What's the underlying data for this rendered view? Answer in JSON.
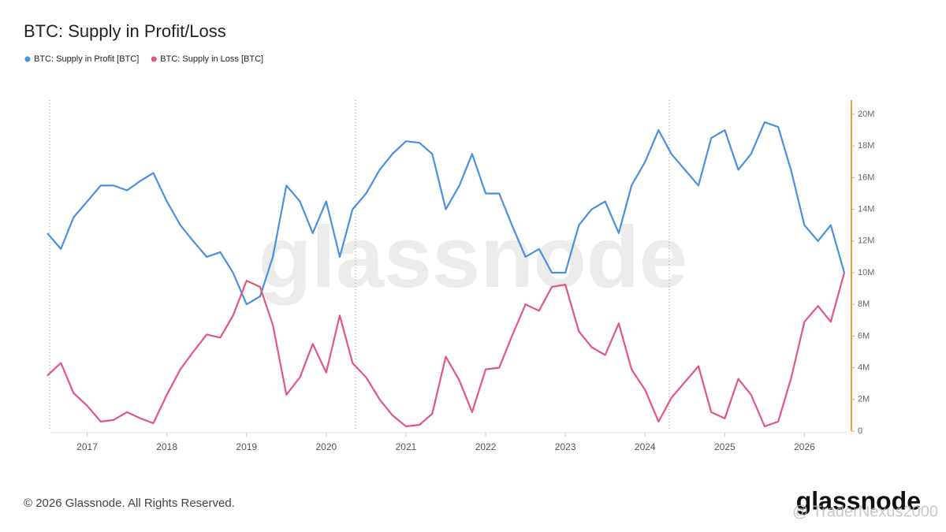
{
  "chart_data": {
    "type": "line",
    "title": "BTC: Supply in Profit/Loss",
    "watermark": "glassnode",
    "footer": "© 2026 Glassnode. All Rights Reserved.",
    "logo": "glassnode",
    "overlay": "@ TraderNexus2000",
    "x": [
      2016.5,
      2016.67,
      2016.83,
      2017.0,
      2017.17,
      2017.33,
      2017.5,
      2017.67,
      2017.83,
      2018.0,
      2018.17,
      2018.33,
      2018.5,
      2018.67,
      2018.83,
      2019.0,
      2019.17,
      2019.33,
      2019.5,
      2019.67,
      2019.83,
      2020.0,
      2020.17,
      2020.33,
      2020.5,
      2020.67,
      2020.83,
      2021.0,
      2021.17,
      2021.33,
      2021.5,
      2021.67,
      2021.83,
      2022.0,
      2022.17,
      2022.33,
      2022.5,
      2022.67,
      2022.83,
      2023.0,
      2023.17,
      2023.33,
      2023.5,
      2023.67,
      2023.83,
      2024.0,
      2024.17,
      2024.33,
      2024.5,
      2024.67,
      2024.83,
      2025.0,
      2025.17,
      2025.33,
      2025.5,
      2025.67,
      2025.83,
      2026.0,
      2026.17,
      2026.33,
      2026.5
    ],
    "series": [
      {
        "name": "BTC: Supply in Profit [BTC]",
        "color": "#4a8fe0",
        "values": [
          12500000,
          11500000,
          13500000,
          14500000,
          15500000,
          15500000,
          15200000,
          15800000,
          16300000,
          14500000,
          13000000,
          12000000,
          11000000,
          11300000,
          10000000,
          8000000,
          8500000,
          11000000,
          15500000,
          14500000,
          12500000,
          14500000,
          11000000,
          14000000,
          15000000,
          16500000,
          17500000,
          18300000,
          18200000,
          17500000,
          14000000,
          15500000,
          17500000,
          15000000,
          15000000,
          13000000,
          11000000,
          11500000,
          10000000,
          10000000,
          13000000,
          14000000,
          14500000,
          12500000,
          15500000,
          17000000,
          19000000,
          17500000,
          16500000,
          15500000,
          18500000,
          19000000,
          16500000,
          17500000,
          19500000,
          19200000,
          16500000,
          13000000,
          12000000,
          13000000,
          10000000
        ]
      },
      {
        "name": "BTC: Supply in Loss [BTC]",
        "color": "#e4577a",
        "values": [
          3500000,
          4300000,
          2400000,
          1600000,
          600000,
          700000,
          1200000,
          800000,
          500000,
          2300000,
          3900000,
          5000000,
          6100000,
          5900000,
          7300000,
          9500000,
          9100000,
          6700000,
          2300000,
          3400000,
          5500000,
          3700000,
          7300000,
          4300000,
          3400000,
          2000000,
          1000000,
          300000,
          400000,
          1100000,
          4700000,
          3200000,
          1200000,
          3900000,
          4000000,
          6000000,
          8000000,
          7600000,
          9100000,
          9250000,
          6300000,
          5300000,
          4800000,
          6800000,
          3900000,
          2600000,
          600000,
          2100000,
          3100000,
          4100000,
          1200000,
          800000,
          3300000,
          2300000,
          300000,
          600000,
          3300000,
          6900000,
          7900000,
          6900000,
          10000000
        ]
      }
    ],
    "xlim": [
      2016.5,
      2026.5
    ],
    "xticks": [
      2017,
      2018,
      2019,
      2020,
      2021,
      2022,
      2023,
      2024,
      2025,
      2026
    ],
    "ylim": [
      0,
      20000000
    ],
    "yticks": [
      {
        "value": 0,
        "label": "0"
      },
      {
        "value": 2000000,
        "label": "2M"
      },
      {
        "value": 4000000,
        "label": "4M"
      },
      {
        "value": 6000000,
        "label": "6M"
      },
      {
        "value": 8000000,
        "label": "8M"
      },
      {
        "value": 10000000,
        "label": "10M"
      },
      {
        "value": 12000000,
        "label": "12M"
      },
      {
        "value": 14000000,
        "label": "14M"
      },
      {
        "value": 16000000,
        "label": "16M"
      },
      {
        "value": 18000000,
        "label": "18M"
      },
      {
        "value": 20000000,
        "label": "20M"
      }
    ],
    "y_axis_side": "right",
    "legend": "top-left"
  }
}
